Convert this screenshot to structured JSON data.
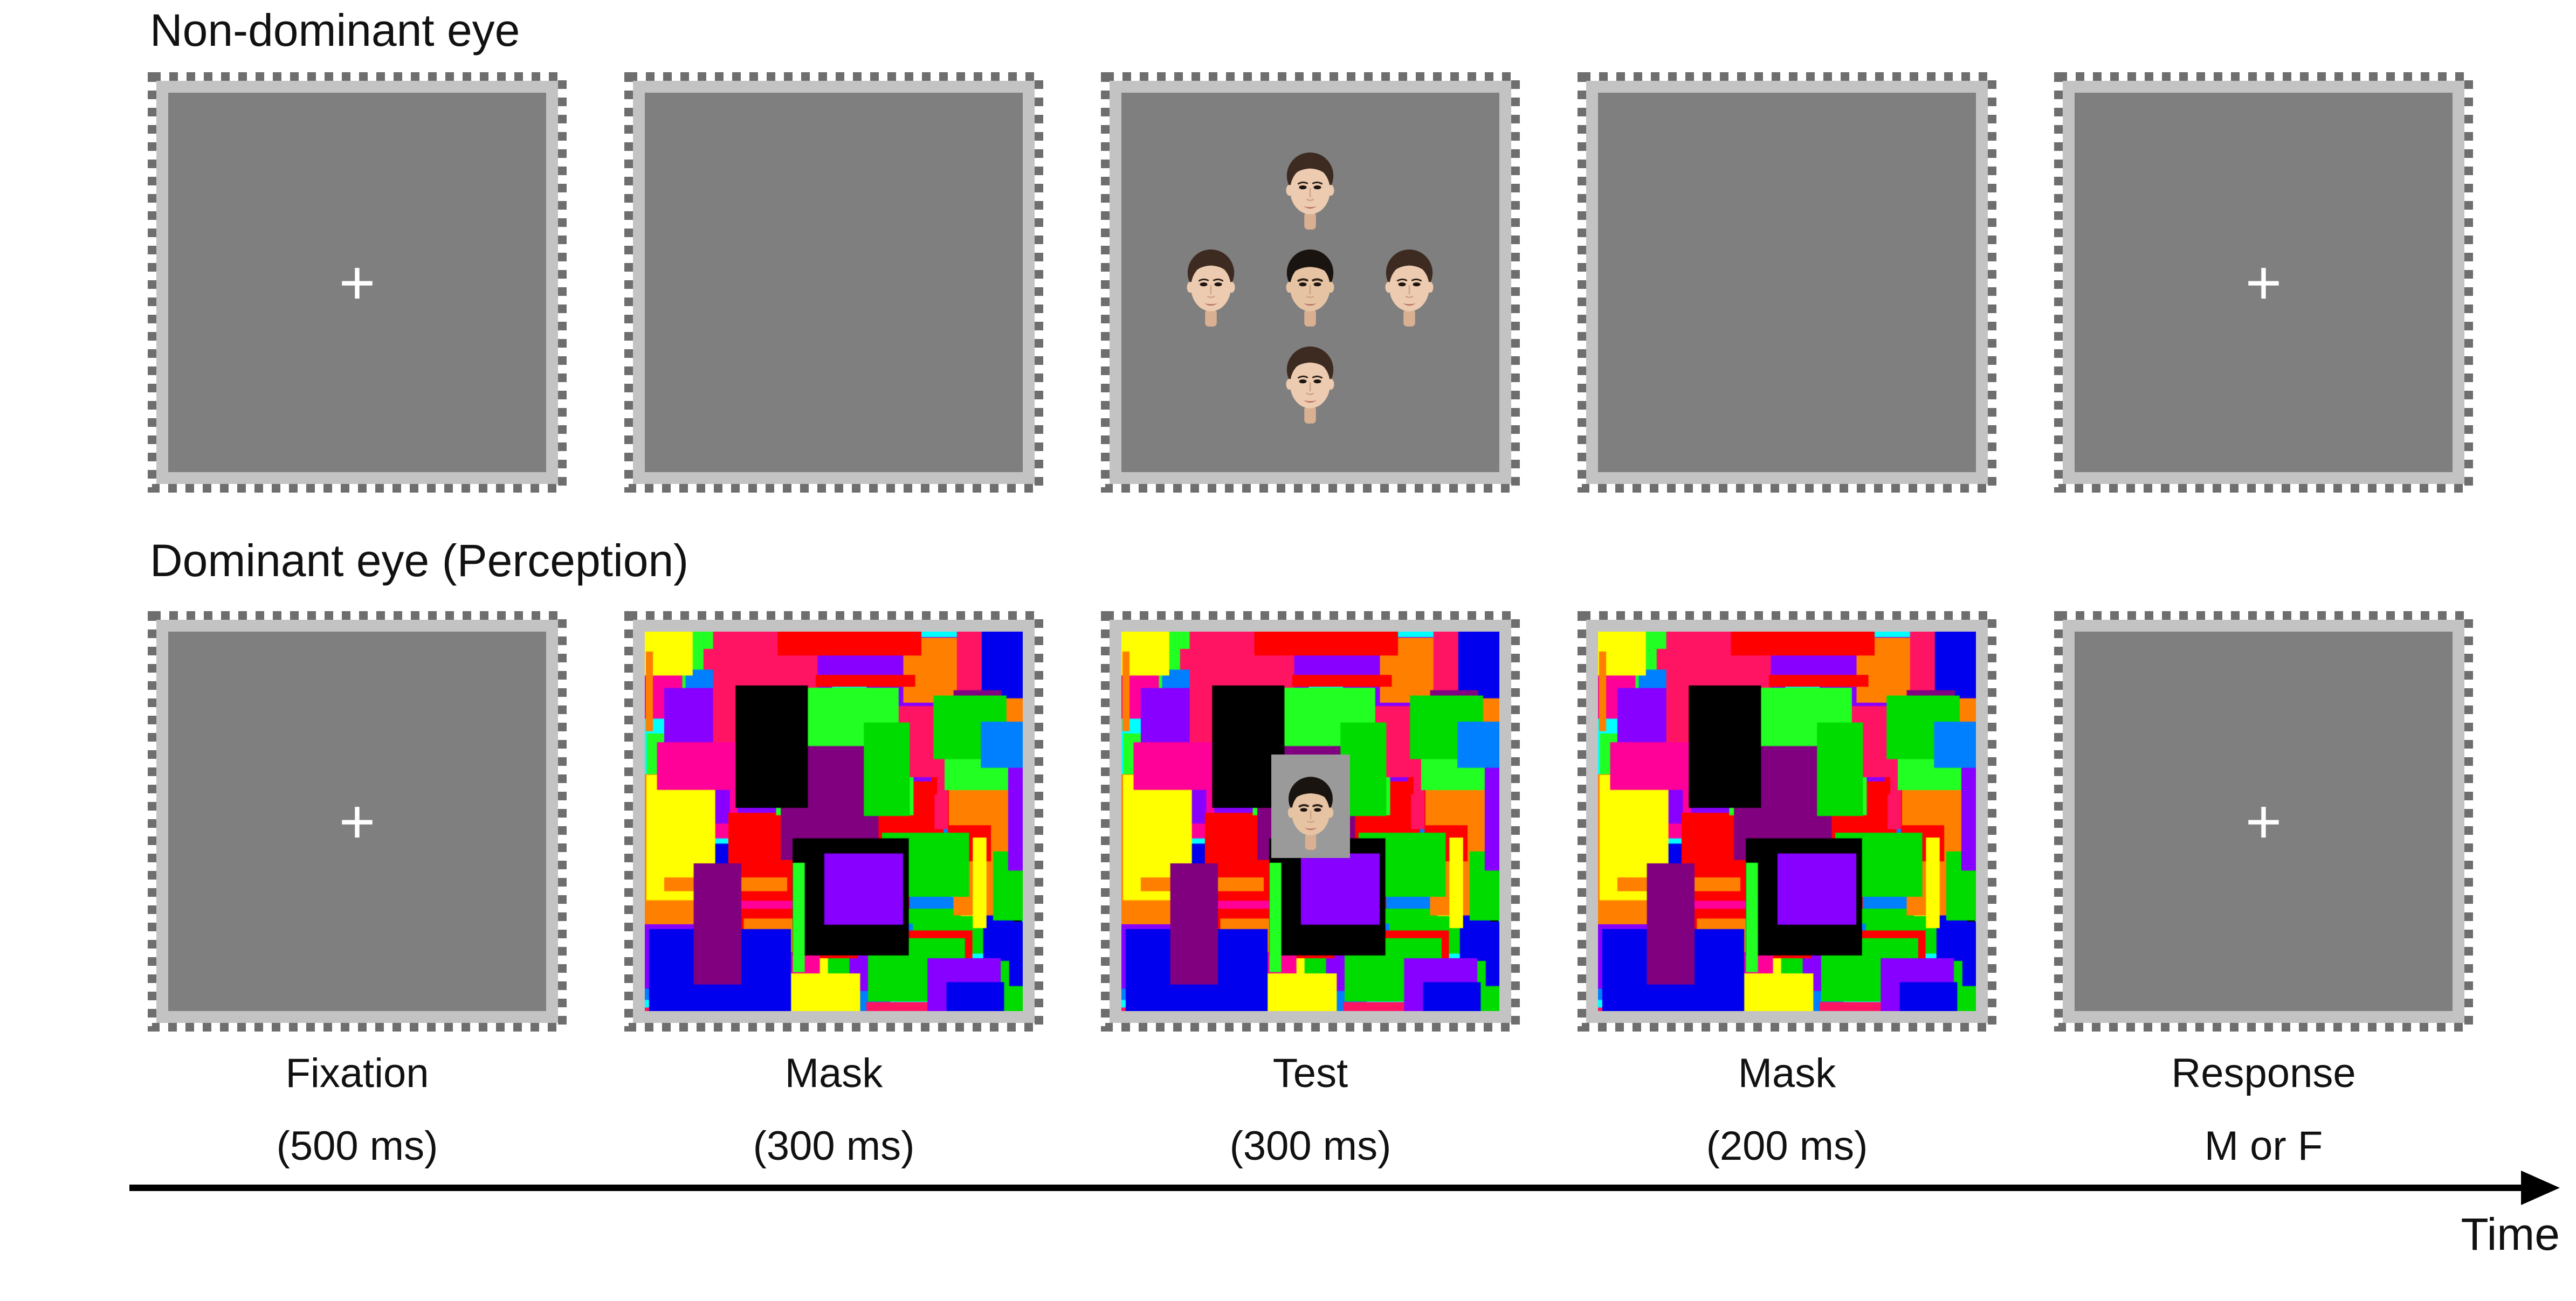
{
  "rows": [
    {
      "title": "Non-dominant eye",
      "panels": [
        {
          "kind": "fixation"
        },
        {
          "kind": "blank"
        },
        {
          "kind": "faces",
          "description": "five face stimuli arranged in a cross, four female around one central male"
        },
        {
          "kind": "blank"
        },
        {
          "kind": "fixation"
        }
      ]
    },
    {
      "title": "Dominant eye (Perception)",
      "panels": [
        {
          "kind": "fixation"
        },
        {
          "kind": "mask"
        },
        {
          "kind": "mask-face",
          "description": "Mondrian mask with central male face photo"
        },
        {
          "kind": "mask"
        },
        {
          "kind": "fixation"
        }
      ]
    }
  ],
  "stages": [
    {
      "name": "Fixation",
      "duration": "(500 ms)"
    },
    {
      "name": "Mask",
      "duration": "(300 ms)"
    },
    {
      "name": "Test",
      "duration": "(300 ms)"
    },
    {
      "name": "Mask",
      "duration": "(200 ms)"
    },
    {
      "name": "Response",
      "duration": "M or F"
    }
  ],
  "time_axis": {
    "label": "Time"
  },
  "fixation": {
    "glyph": "+",
    "color": "#ffffff"
  },
  "colors": {
    "background": "#ffffff",
    "text": "#111111",
    "panel_gray": "#7f7f7f",
    "panel_frame": "#c3c3c3",
    "dash": "#6e6e6e",
    "photo_background": "#9a9a9a",
    "mask_palette": [
      "#ff0099",
      "#ff1464",
      "#0000ee",
      "#0080ff",
      "#00ffff",
      "#00dc00",
      "#22ff22",
      "#ffff00",
      "#ff8000",
      "#ff0000",
      "#8800ff",
      "#800080",
      "#000000"
    ],
    "skin_female": "#eccbb0",
    "hair_female": "#3d2b22",
    "skin_male": "#e6c3a3",
    "hair_male": "#1a1410",
    "lips": "#b87364"
  }
}
